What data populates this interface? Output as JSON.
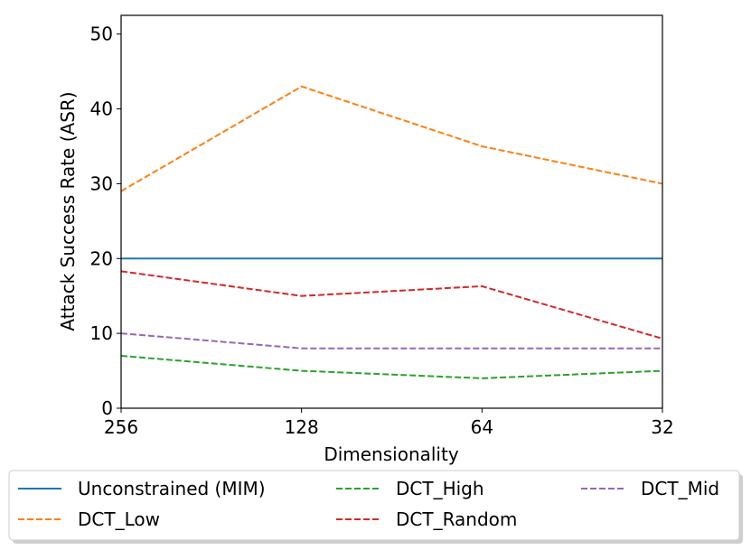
{
  "chart_data": {
    "type": "line",
    "xlabel": "Dimensionality",
    "ylabel": "Attack Success Rate (ASR)",
    "x": [
      "256",
      "128",
      "64",
      "32"
    ],
    "yticks": [
      "0",
      "10",
      "20",
      "30",
      "40",
      "50"
    ],
    "ylim": [
      0,
      52.5
    ],
    "grid": false,
    "legend_position": "bottom-outside",
    "series": [
      {
        "name": "Unconstrained (MIM)",
        "values": [
          20,
          20,
          20,
          20
        ],
        "color": "#1f77b4",
        "dash": "solid"
      },
      {
        "name": "DCT_Low",
        "values": [
          29,
          43,
          35,
          30
        ],
        "color": "#ff7f0e",
        "dash": "dashed"
      },
      {
        "name": "DCT_High",
        "values": [
          7,
          5,
          4,
          5
        ],
        "color": "#2ca02c",
        "dash": "dashed"
      },
      {
        "name": "DCT_Random",
        "values": [
          18.3,
          15,
          16.3,
          9.3
        ],
        "color": "#d62728",
        "dash": "dashed"
      },
      {
        "name": "DCT_Mid",
        "values": [
          10,
          8,
          8,
          8
        ],
        "color": "#9467bd",
        "dash": "dashed"
      }
    ]
  }
}
